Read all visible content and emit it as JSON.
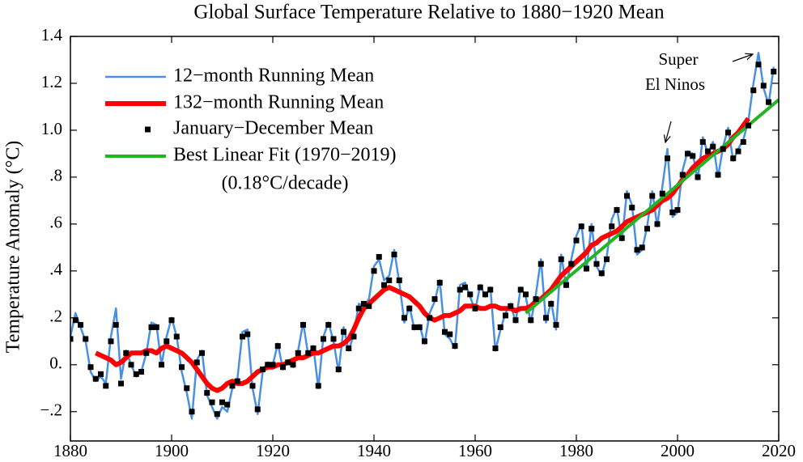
{
  "chart_data": {
    "type": "line",
    "title": "Global Surface Temperature Relative to 1880−1920 Mean",
    "y_label": "Temperature Anomaly (°C)",
    "annotations": [
      "Super",
      "El Ninos",
      "(0.18°C/decade)"
    ],
    "xlim": [
      1880,
      2020
    ],
    "xticks": [
      1880,
      1900,
      1920,
      1940,
      1960,
      1980,
      2000,
      2020
    ],
    "ylim": [
      -0.325,
      1.4
    ],
    "yticks": [
      {
        "value": -0.2,
        "label": "−.2"
      },
      {
        "value": 0,
        "label": "0."
      },
      {
        "value": 0.2,
        "label": ".2"
      },
      {
        "value": 0.4,
        "label": ".4"
      },
      {
        "value": 0.6,
        "label": ".6"
      },
      {
        "value": 0.8,
        "label": ".8"
      },
      {
        "value": 1.0,
        "label": "1.0"
      },
      1.2,
      1.4
    ],
    "x": [
      1880,
      1881,
      1882,
      1883,
      1884,
      1885,
      1886,
      1887,
      1888,
      1889,
      1890,
      1891,
      1892,
      1893,
      1894,
      1895,
      1896,
      1897,
      1898,
      1899,
      1900,
      1901,
      1902,
      1903,
      1904,
      1905,
      1906,
      1907,
      1908,
      1909,
      1910,
      1911,
      1912,
      1913,
      1914,
      1915,
      1916,
      1917,
      1918,
      1919,
      1920,
      1921,
      1922,
      1923,
      1924,
      1925,
      1926,
      1927,
      1928,
      1929,
      1930,
      1931,
      1932,
      1933,
      1934,
      1935,
      1936,
      1937,
      1938,
      1939,
      1940,
      1941,
      1942,
      1943,
      1944,
      1945,
      1946,
      1947,
      1948,
      1949,
      1950,
      1951,
      1952,
      1953,
      1954,
      1955,
      1956,
      1957,
      1958,
      1959,
      1960,
      1961,
      1962,
      1963,
      1964,
      1965,
      1966,
      1967,
      1968,
      1969,
      1970,
      1971,
      1972,
      1973,
      1974,
      1975,
      1976,
      1977,
      1978,
      1979,
      1980,
      1981,
      1982,
      1983,
      1984,
      1985,
      1986,
      1987,
      1988,
      1989,
      1990,
      1991,
      1992,
      1993,
      1994,
      1995,
      1996,
      1997,
      1998,
      1999,
      2000,
      2001,
      2002,
      2003,
      2004,
      2005,
      2006,
      2007,
      2008,
      2009,
      2010,
      2011,
      2012,
      2013,
      2014,
      2015,
      2016,
      2017,
      2018,
      2019
    ],
    "series": [
      {
        "name": "12−month Running Mean",
        "type": "line",
        "color": "#4a90e2",
        "values": [
          0.12,
          0.22,
          0.16,
          0.1,
          -0.03,
          -0.07,
          -0.05,
          -0.08,
          0.12,
          0.24,
          -0.06,
          0.06,
          0.0,
          -0.05,
          -0.03,
          0.05,
          0.18,
          0.17,
          0.0,
          0.12,
          0.2,
          0.12,
          -0.03,
          -0.12,
          -0.23,
          0.02,
          0.06,
          -0.13,
          -0.18,
          -0.23,
          -0.18,
          -0.2,
          -0.1,
          -0.06,
          0.14,
          0.15,
          -0.1,
          -0.21,
          -0.03,
          0.01,
          0.0,
          0.09,
          -0.02,
          0.02,
          -0.01,
          0.06,
          0.18,
          0.04,
          0.08,
          -0.1,
          0.12,
          0.18,
          0.1,
          -0.03,
          0.16,
          0.06,
          0.13,
          0.26,
          0.25,
          0.28,
          0.42,
          0.45,
          0.36,
          0.38,
          0.49,
          0.35,
          0.18,
          0.25,
          0.15,
          0.17,
          0.09,
          0.22,
          0.27,
          0.36,
          0.13,
          0.11,
          0.07,
          0.34,
          0.35,
          0.29,
          0.23,
          0.34,
          0.29,
          0.33,
          0.06,
          0.15,
          0.22,
          0.26,
          0.18,
          0.33,
          0.29,
          0.18,
          0.3,
          0.45,
          0.18,
          0.27,
          0.15,
          0.47,
          0.33,
          0.45,
          0.55,
          0.6,
          0.4,
          0.6,
          0.42,
          0.38,
          0.46,
          0.62,
          0.67,
          0.53,
          0.74,
          0.68,
          0.47,
          0.49,
          0.59,
          0.74,
          0.59,
          0.76,
          0.92,
          0.63,
          0.65,
          0.83,
          0.91,
          0.9,
          0.79,
          0.97,
          0.9,
          0.95,
          0.8,
          0.93,
          1.01,
          0.87,
          0.92,
          0.96,
          1.04,
          1.2,
          1.33,
          1.18,
          1.11,
          1.27
        ]
      },
      {
        "name": "132−month Running Mean",
        "type": "line",
        "color": "#ff0000",
        "values": [
          null,
          null,
          null,
          null,
          null,
          0.05,
          0.04,
          0.03,
          0.02,
          0.0,
          0.01,
          0.03,
          0.05,
          0.05,
          0.05,
          0.06,
          0.06,
          0.05,
          0.07,
          0.08,
          0.07,
          0.06,
          0.05,
          0.03,
          0.01,
          -0.02,
          -0.05,
          -0.08,
          -0.1,
          -0.11,
          -0.1,
          -0.08,
          -0.07,
          -0.08,
          -0.08,
          -0.07,
          -0.05,
          -0.03,
          -0.02,
          -0.01,
          -0.01,
          0.0,
          0.0,
          0.01,
          0.02,
          0.03,
          0.03,
          0.04,
          0.05,
          0.05,
          0.06,
          0.07,
          0.08,
          0.08,
          0.09,
          0.11,
          0.15,
          0.2,
          0.24,
          0.26,
          0.28,
          0.3,
          0.32,
          0.33,
          0.32,
          0.31,
          0.3,
          0.29,
          0.27,
          0.25,
          0.22,
          0.2,
          0.19,
          0.2,
          0.21,
          0.21,
          0.22,
          0.23,
          0.25,
          0.25,
          0.25,
          0.24,
          0.24,
          0.25,
          0.25,
          0.24,
          0.24,
          0.24,
          0.23,
          0.24,
          0.24,
          0.25,
          0.27,
          0.28,
          0.3,
          0.32,
          0.35,
          0.38,
          0.4,
          0.42,
          0.44,
          0.46,
          0.48,
          0.51,
          0.52,
          0.54,
          0.55,
          0.56,
          0.57,
          0.59,
          0.61,
          0.62,
          0.63,
          0.64,
          0.65,
          0.66,
          0.68,
          0.7,
          0.71,
          0.73,
          0.76,
          0.79,
          0.81,
          0.84,
          0.86,
          0.88,
          0.89,
          0.9,
          0.91,
          0.92,
          0.94,
          0.97,
          0.99,
          1.02,
          1.05,
          null,
          null,
          null,
          null,
          null
        ]
      },
      {
        "name": "January−December Mean",
        "type": "scatter",
        "color": "#000000",
        "values": [
          0.11,
          0.19,
          0.17,
          0.11,
          -0.01,
          -0.06,
          -0.04,
          -0.09,
          0.1,
          0.17,
          -0.08,
          0.05,
          0.0,
          -0.04,
          -0.03,
          0.05,
          0.16,
          0.16,
          0.0,
          0.1,
          0.19,
          0.12,
          -0.01,
          -0.1,
          -0.2,
          0.01,
          0.05,
          -0.12,
          -0.16,
          -0.21,
          -0.16,
          -0.17,
          -0.09,
          -0.07,
          0.12,
          0.13,
          -0.09,
          -0.19,
          -0.02,
          0.0,
          0.0,
          0.08,
          -0.01,
          0.01,
          0.0,
          0.05,
          0.17,
          0.05,
          0.07,
          -0.09,
          0.11,
          0.17,
          0.11,
          -0.02,
          0.14,
          0.07,
          0.12,
          0.24,
          0.26,
          0.25,
          0.4,
          0.46,
          0.34,
          0.36,
          0.47,
          0.36,
          0.2,
          0.24,
          0.16,
          0.16,
          0.1,
          0.2,
          0.28,
          0.35,
          0.14,
          0.13,
          0.08,
          0.32,
          0.33,
          0.3,
          0.24,
          0.33,
          0.3,
          0.32,
          0.07,
          0.16,
          0.21,
          0.25,
          0.19,
          0.32,
          0.3,
          0.19,
          0.28,
          0.43,
          0.2,
          0.26,
          0.17,
          0.45,
          0.34,
          0.43,
          0.53,
          0.59,
          0.41,
          0.58,
          0.43,
          0.39,
          0.45,
          0.59,
          0.66,
          0.54,
          0.72,
          0.67,
          0.49,
          0.5,
          0.58,
          0.72,
          0.6,
          0.73,
          0.88,
          0.65,
          0.66,
          0.81,
          0.9,
          0.89,
          0.8,
          0.95,
          0.91,
          0.93,
          0.81,
          0.92,
          0.99,
          0.88,
          0.91,
          0.95,
          1.02,
          1.17,
          1.28,
          1.19,
          1.12,
          1.25
        ]
      },
      {
        "name": "Best Linear Fit (1970−2019)",
        "type": "line",
        "color": "#22b422",
        "x": [
          1970,
          2020
        ],
        "values": [
          0.22,
          1.13
        ]
      }
    ]
  }
}
